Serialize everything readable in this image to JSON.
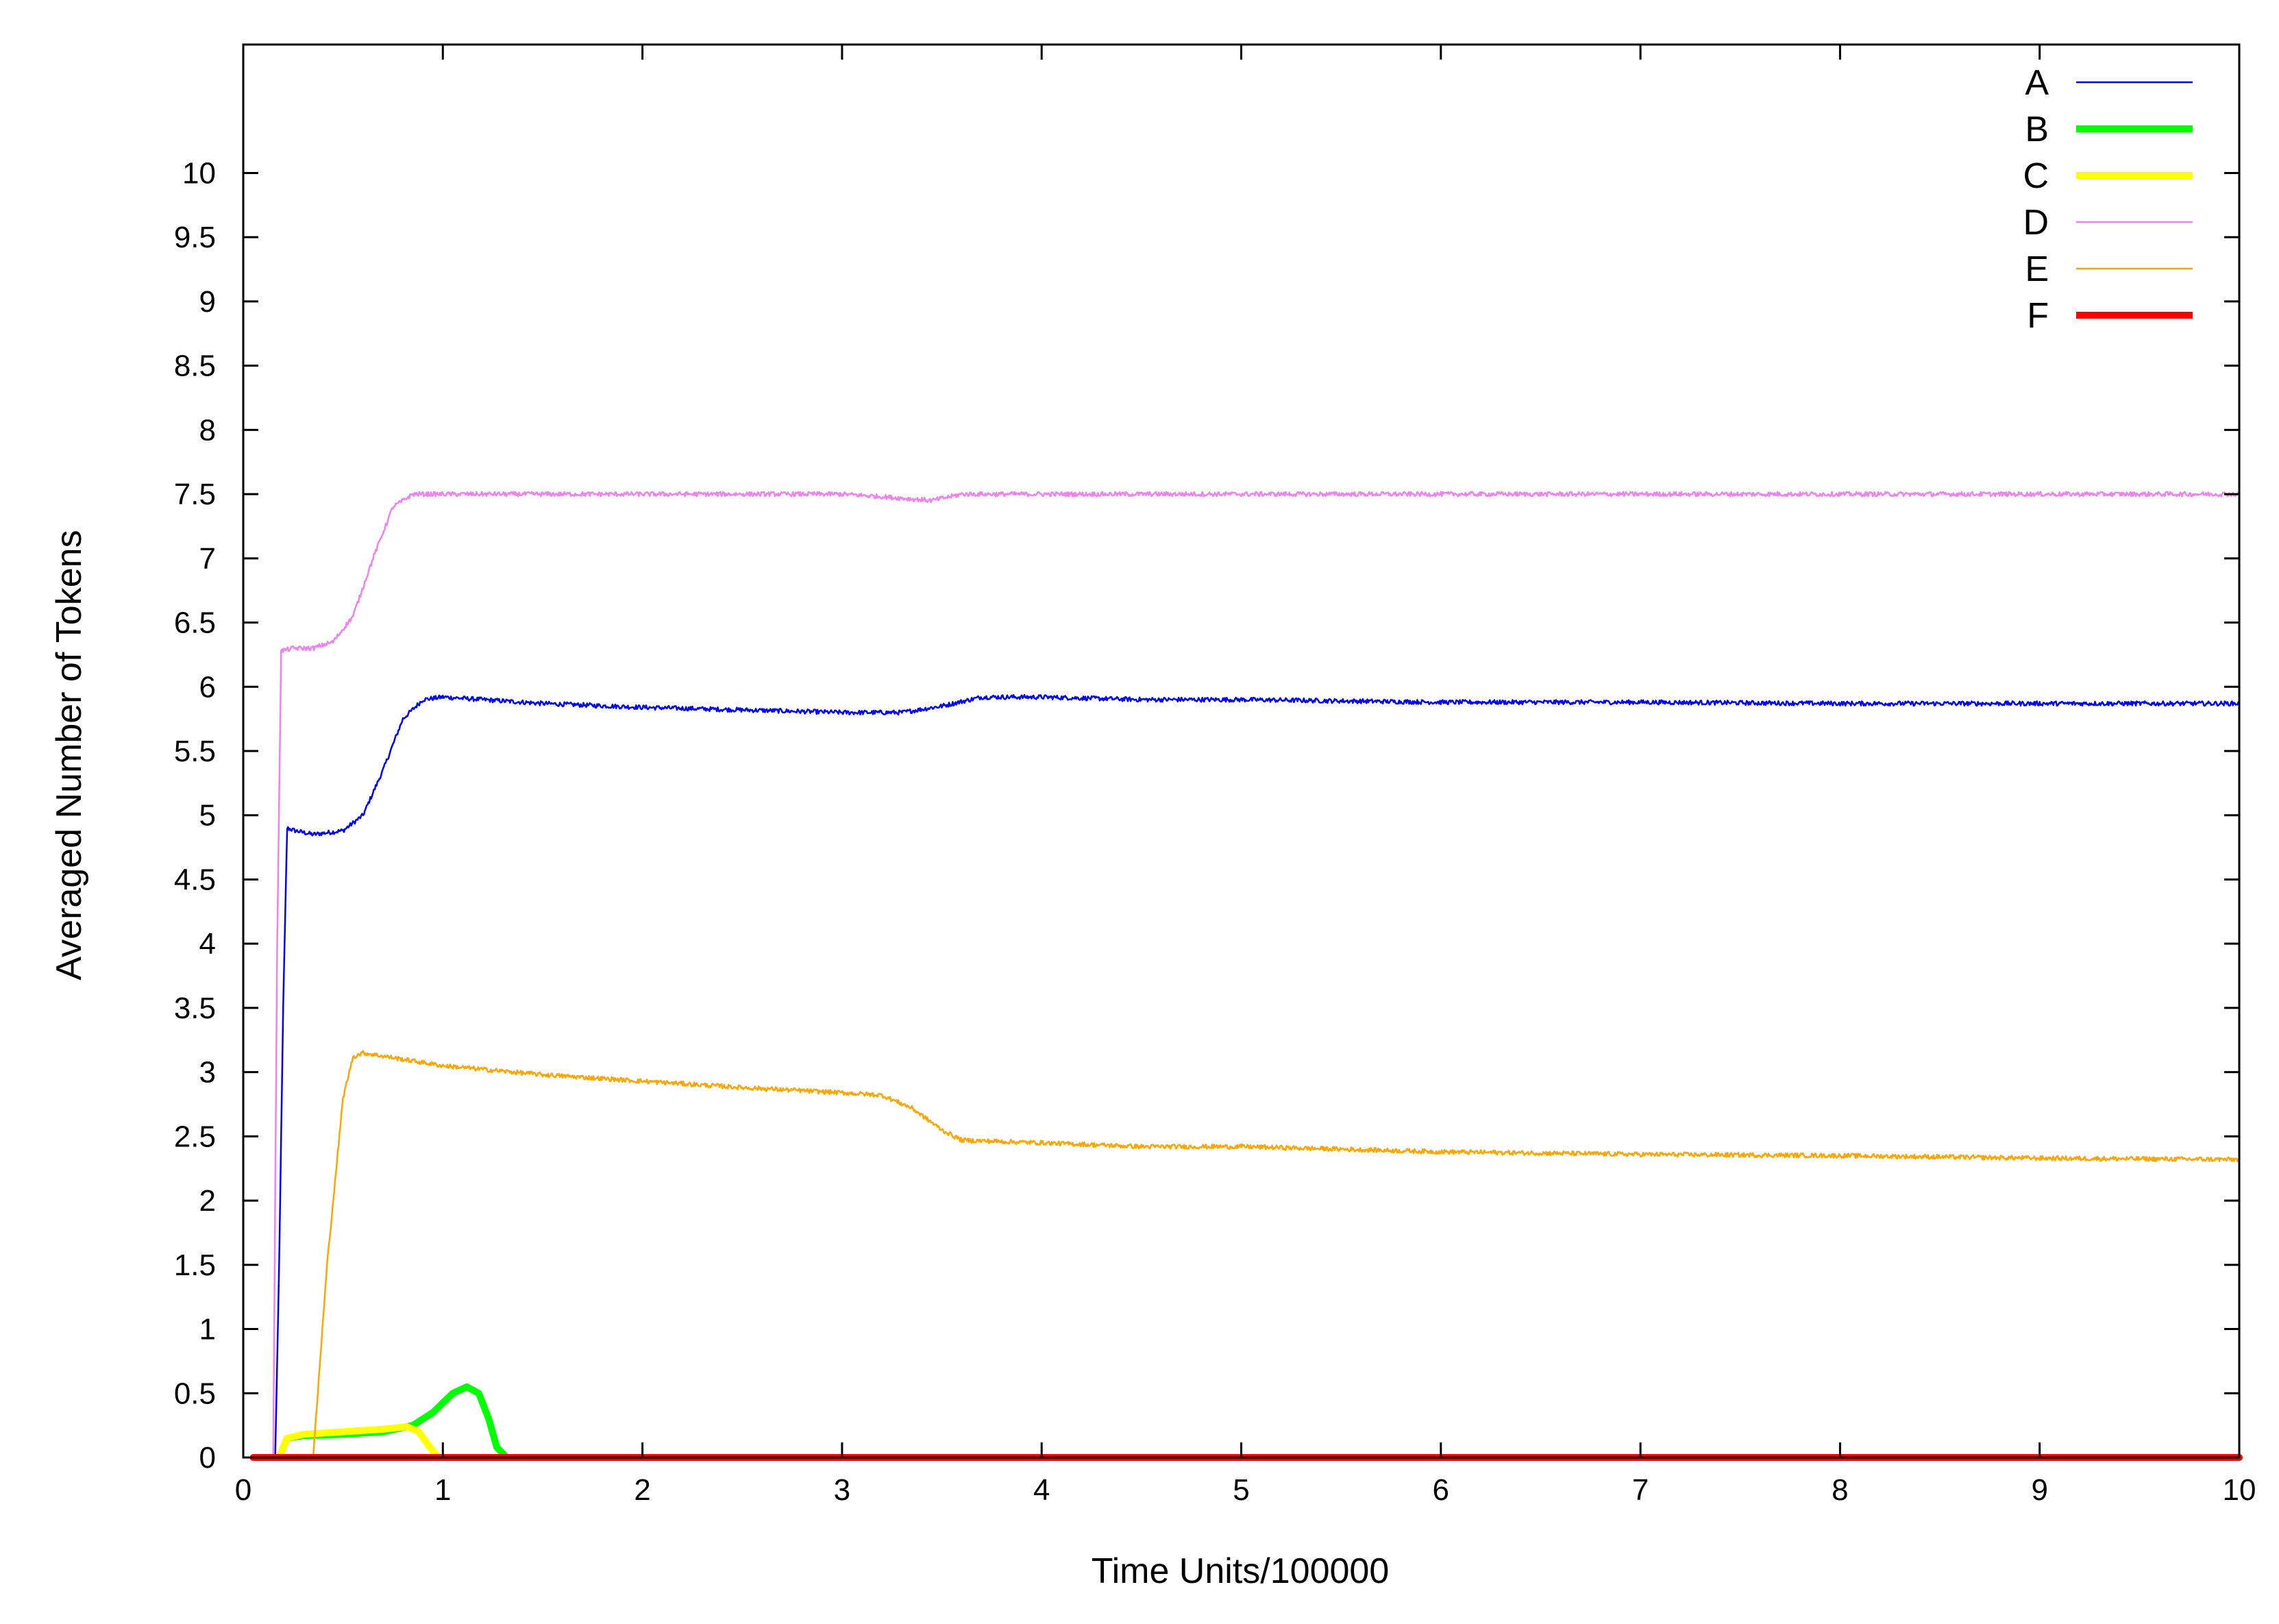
{
  "chart_data": {
    "type": "line",
    "title": "",
    "xlabel": "Time Units/100000",
    "ylabel": "Averaged Number of Tokens",
    "xlim": [
      0,
      10
    ],
    "ylim": [
      0,
      11
    ],
    "x_ticks": [
      0,
      1,
      2,
      3,
      4,
      5,
      6,
      7,
      8,
      9,
      10
    ],
    "x_tick_labels": [
      "0",
      "1",
      "2",
      "3",
      "4",
      "5",
      "6",
      "7",
      "8",
      "9",
      "10"
    ],
    "y_ticks": [
      0,
      0.5,
      1,
      1.5,
      2,
      2.5,
      3,
      3.5,
      4,
      4.5,
      5,
      5.5,
      6,
      6.5,
      7,
      7.5,
      8,
      8.5,
      9,
      9.5,
      10
    ],
    "y_tick_labels": [
      "0",
      "0.5",
      "1",
      "1.5",
      "2",
      "2.5",
      "3",
      "3.5",
      "4",
      "4.5",
      "5",
      "5.5",
      "6",
      "6.5",
      "7",
      "7.5",
      "8",
      "8.5",
      "9",
      "9.5",
      "10"
    ],
    "grid": false,
    "legend": {
      "position": "top-right"
    },
    "series": [
      {
        "name": "A",
        "color": "#0000ff",
        "line_width": "thin",
        "points": [
          [
            0.05,
            0
          ],
          [
            0.16,
            0
          ],
          [
            0.18,
            1.5
          ],
          [
            0.2,
            3.5
          ],
          [
            0.22,
            4.9
          ],
          [
            0.26,
            4.88
          ],
          [
            0.35,
            4.85
          ],
          [
            0.5,
            4.88
          ],
          [
            0.6,
            5.0
          ],
          [
            0.7,
            5.35
          ],
          [
            0.8,
            5.75
          ],
          [
            0.9,
            5.9
          ],
          [
            1.0,
            5.92
          ],
          [
            1.5,
            5.87
          ],
          [
            2.0,
            5.84
          ],
          [
            2.5,
            5.82
          ],
          [
            3.0,
            5.8
          ],
          [
            3.3,
            5.8
          ],
          [
            3.5,
            5.85
          ],
          [
            3.7,
            5.92
          ],
          [
            4.0,
            5.92
          ],
          [
            4.5,
            5.9
          ],
          [
            5.0,
            5.9
          ],
          [
            6.0,
            5.88
          ],
          [
            7.0,
            5.88
          ],
          [
            8.0,
            5.87
          ],
          [
            9.0,
            5.87
          ],
          [
            10.0,
            5.87
          ]
        ]
      },
      {
        "name": "B",
        "color": "#00ff00",
        "line_width": "thick",
        "points": [
          [
            0.05,
            0
          ],
          [
            0.18,
            0
          ],
          [
            0.22,
            0.15
          ],
          [
            0.3,
            0.17
          ],
          [
            0.5,
            0.18
          ],
          [
            0.7,
            0.2
          ],
          [
            0.85,
            0.25
          ],
          [
            0.95,
            0.35
          ],
          [
            1.05,
            0.5
          ],
          [
            1.12,
            0.55
          ],
          [
            1.18,
            0.5
          ],
          [
            1.23,
            0.3
          ],
          [
            1.27,
            0.08
          ],
          [
            1.32,
            0
          ],
          [
            10.0,
            0
          ]
        ]
      },
      {
        "name": "C",
        "color": "#ffff00",
        "line_width": "thick",
        "points": [
          [
            0.05,
            0
          ],
          [
            0.18,
            0
          ],
          [
            0.22,
            0.15
          ],
          [
            0.3,
            0.18
          ],
          [
            0.5,
            0.2
          ],
          [
            0.7,
            0.22
          ],
          [
            0.82,
            0.24
          ],
          [
            0.88,
            0.2
          ],
          [
            0.94,
            0.07
          ],
          [
            0.98,
            0
          ],
          [
            10.0,
            0
          ]
        ]
      },
      {
        "name": "D",
        "color": "#ee82ee",
        "line_width": "thin",
        "points": [
          [
            0.05,
            0
          ],
          [
            0.15,
            0
          ],
          [
            0.17,
            4.0
          ],
          [
            0.19,
            6.28
          ],
          [
            0.25,
            6.3
          ],
          [
            0.35,
            6.3
          ],
          [
            0.45,
            6.35
          ],
          [
            0.55,
            6.55
          ],
          [
            0.65,
            7.0
          ],
          [
            0.75,
            7.4
          ],
          [
            0.85,
            7.5
          ],
          [
            1.0,
            7.5
          ],
          [
            1.5,
            7.5
          ],
          [
            2.0,
            7.5
          ],
          [
            2.5,
            7.5
          ],
          [
            3.0,
            7.5
          ],
          [
            3.2,
            7.48
          ],
          [
            3.45,
            7.45
          ],
          [
            3.6,
            7.5
          ],
          [
            4.0,
            7.5
          ],
          [
            5.0,
            7.5
          ],
          [
            6.0,
            7.5
          ],
          [
            7.0,
            7.5
          ],
          [
            8.0,
            7.5
          ],
          [
            9.0,
            7.5
          ],
          [
            10.0,
            7.5
          ]
        ]
      },
      {
        "name": "E",
        "color": "#ffa500",
        "line_width": "thin",
        "points": [
          [
            0.05,
            0
          ],
          [
            0.35,
            0
          ],
          [
            0.42,
            1.5
          ],
          [
            0.5,
            2.8
          ],
          [
            0.55,
            3.12
          ],
          [
            0.6,
            3.15
          ],
          [
            0.8,
            3.1
          ],
          [
            1.0,
            3.05
          ],
          [
            1.5,
            2.98
          ],
          [
            2.0,
            2.93
          ],
          [
            2.5,
            2.88
          ],
          [
            3.0,
            2.84
          ],
          [
            3.2,
            2.82
          ],
          [
            3.35,
            2.72
          ],
          [
            3.5,
            2.55
          ],
          [
            3.6,
            2.47
          ],
          [
            4.0,
            2.45
          ],
          [
            4.5,
            2.42
          ],
          [
            5.0,
            2.42
          ],
          [
            6.0,
            2.38
          ],
          [
            7.0,
            2.36
          ],
          [
            8.0,
            2.35
          ],
          [
            9.0,
            2.33
          ],
          [
            10.0,
            2.32
          ]
        ]
      },
      {
        "name": "F",
        "color": "#ff0000",
        "line_width": "thick",
        "points": [
          [
            0.05,
            0
          ],
          [
            10.0,
            0
          ]
        ]
      }
    ]
  }
}
